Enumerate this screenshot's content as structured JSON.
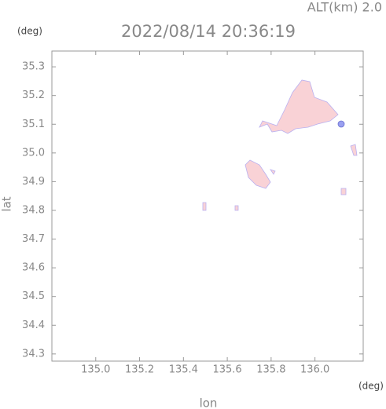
{
  "chart_data": {
    "type": "map",
    "title": "2022/08/14 20:36:19",
    "subtitle": "ALT(km) 2.0",
    "xlabel": "lon",
    "ylabel": "lat",
    "xunit": "(deg)",
    "yunit": "(deg)",
    "xlim": [
      134.8,
      136.22
    ],
    "ylim": [
      34.275,
      35.355
    ],
    "xticks": [
      {
        "value": 135.0,
        "label": "135.0"
      },
      135.2,
      135.4,
      135.6,
      135.8,
      {
        "value": 136.0,
        "label": "136.0"
      }
    ],
    "yticks": [
      34.3,
      34.4,
      34.5,
      34.6,
      34.7,
      34.8,
      34.9,
      {
        "value": 35.0,
        "label": "35.0"
      },
      35.1,
      35.2,
      35.3
    ]
  }
}
